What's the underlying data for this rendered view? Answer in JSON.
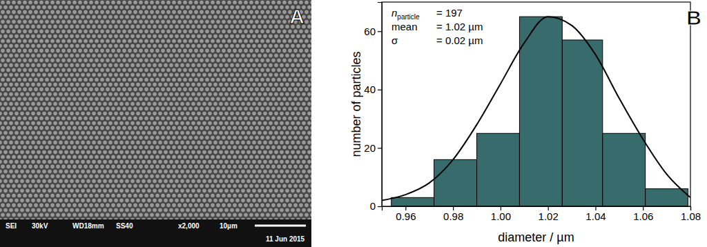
{
  "panel_a": {
    "label": "A",
    "info_bar": [
      "SEI",
      "30kV",
      "WD18mm",
      "SS40",
      "x2,000",
      "10µm"
    ],
    "date": "11 Jun 2015"
  },
  "chart_data": {
    "type": "histogram",
    "label": "B",
    "x_label": "diameter / µm",
    "y_label": "number of particles",
    "bins": [
      0.954,
      0.972,
      0.99,
      1.008,
      1.026,
      1.043,
      1.061,
      1.079
    ],
    "values": [
      3,
      16,
      25,
      65,
      57,
      25,
      6
    ],
    "color": "#386b6b",
    "xlim": [
      0.95,
      1.08
    ],
    "xticks": [
      0.96,
      0.98,
      {
        "value": 1,
        "label": "1.00"
      },
      1.02,
      1.04,
      1.06,
      1.08
    ],
    "ylim": [
      0,
      70
    ],
    "yticks": [
      0,
      20,
      40,
      60
    ],
    "fit": {
      "type": "line",
      "color": "#000000",
      "x": [
        0.95,
        0.96,
        0.97,
        0.98,
        0.99,
        1.0,
        1.01,
        1.02,
        1.03,
        1.04,
        1.05,
        1.06,
        1.07,
        1.08
      ],
      "values": [
        2,
        4,
        8,
        16,
        28,
        42,
        56,
        65,
        62,
        52,
        37,
        23,
        11,
        3
      ]
    },
    "annotations": [
      {
        "symbol": "n",
        "subscript": "particle",
        "text": "= 197"
      },
      {
        "symbol": "mean",
        "text": "= 1.02 µm"
      },
      {
        "symbol": "σ",
        "text": "= 0.02 µm"
      }
    ]
  }
}
